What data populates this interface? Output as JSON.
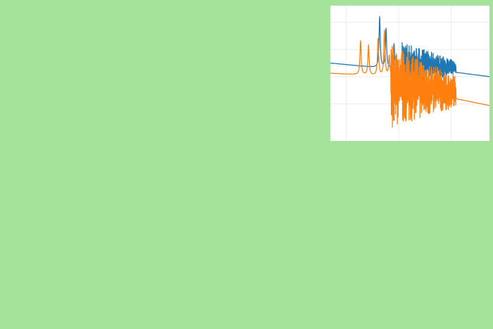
{
  "app": {
    "background_color": "#a5e39b",
    "chart_background_color": "#ffffff"
  },
  "chart_data": {
    "type": "line",
    "title": "",
    "xlabel": "",
    "ylabel": "",
    "grid": true,
    "legend": "none",
    "x_range": [
      0,
      1
    ],
    "y_range": [
      -1.8,
      1.6
    ],
    "series": [
      {
        "color": "#1f77b4",
        "baseline": [
          [
            0.0,
            0.2
          ],
          [
            0.44,
            0.0
          ],
          [
            0.8,
            -0.08
          ],
          [
            1.0,
            -0.2
          ]
        ],
        "peaks": [
          {
            "x": 0.31,
            "y": 1.55
          },
          {
            "x": 0.35,
            "y": 1.2
          },
          {
            "x": 0.4,
            "y": 0.75
          },
          {
            "x": 0.46,
            "y": 1.05
          }
        ],
        "dense_band": {
          "x_start": 0.45,
          "x_end": 0.79,
          "high": [
            0.85,
            0.25
          ],
          "low": [
            -0.45,
            -0.15
          ]
        }
      },
      {
        "color": "#ff7f0e",
        "baseline": [
          [
            0.0,
            -0.1
          ],
          [
            0.4,
            -0.2
          ],
          [
            0.79,
            -0.85
          ],
          [
            1.0,
            -1.05
          ]
        ],
        "peaks": [
          {
            "x": 0.19,
            "y": 0.85
          },
          {
            "x": 0.24,
            "y": 0.72
          },
          {
            "x": 0.3,
            "y": 0.9
          },
          {
            "x": 0.34,
            "y": 1.15
          },
          {
            "x": 0.37,
            "y": 0.4
          }
        ],
        "dense_band": {
          "x_start": 0.38,
          "x_end": 0.79,
          "high": [
            0.8,
            -0.2
          ],
          "low": [
            -1.7,
            -1.1
          ]
        }
      }
    ]
  }
}
